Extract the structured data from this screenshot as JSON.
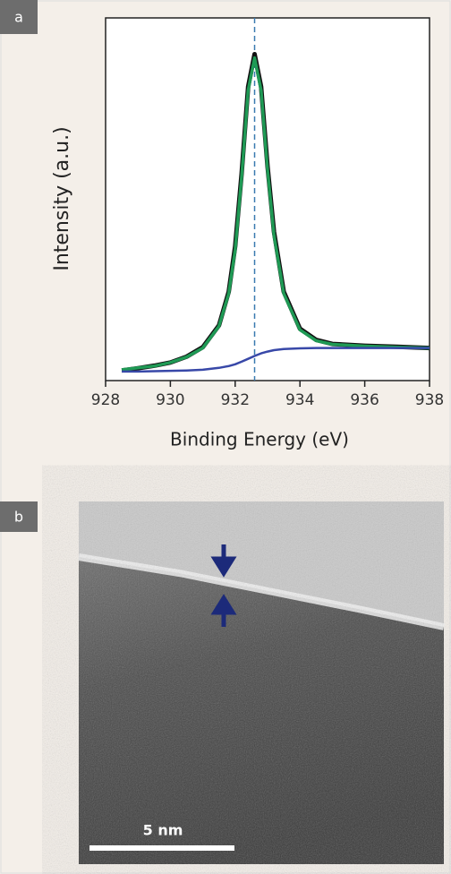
{
  "chart_data": {
    "type": "line",
    "panel_label": "a",
    "x_label": "Binding Energy (eV)",
    "y_label": "Intensity (a.u.)",
    "x": [
      928.5,
      929,
      929.5,
      930,
      930.5,
      931,
      931.5,
      931.8,
      932,
      932.2,
      932.4,
      932.6,
      932.8,
      933,
      933.2,
      933.5,
      934,
      934.5,
      935,
      936,
      937,
      938
    ],
    "series": [
      {
        "color": "#111111",
        "values": [
          0.028,
          0.034,
          0.041,
          0.05,
          0.066,
          0.092,
          0.152,
          0.245,
          0.37,
          0.57,
          0.81,
          0.9,
          0.81,
          0.59,
          0.41,
          0.245,
          0.143,
          0.112,
          0.101,
          0.096,
          0.093,
          0.09
        ]
      },
      {
        "color": "#1f9a55",
        "values": [
          0.03,
          0.035,
          0.04,
          0.05,
          0.065,
          0.09,
          0.15,
          0.24,
          0.36,
          0.56,
          0.8,
          0.89,
          0.8,
          0.58,
          0.4,
          0.24,
          0.14,
          0.11,
          0.1,
          0.095,
          0.092,
          0.09
        ]
      },
      {
        "color": "#3848a8",
        "values": [
          0.025,
          0.025,
          0.026,
          0.027,
          0.028,
          0.03,
          0.035,
          0.04,
          0.045,
          0.052,
          0.06,
          0.068,
          0.075,
          0.08,
          0.084,
          0.087,
          0.089,
          0.09,
          0.09,
          0.09,
          0.09,
          0.09
        ]
      }
    ],
    "vline": 932.6,
    "xlim": [
      928,
      938
    ],
    "xticks": [
      928,
      930,
      932,
      934,
      936,
      938
    ],
    "ylim": [
      0,
      1
    ]
  },
  "micrograph": {
    "panel_label": "b",
    "scale_bar": "5 nm"
  }
}
